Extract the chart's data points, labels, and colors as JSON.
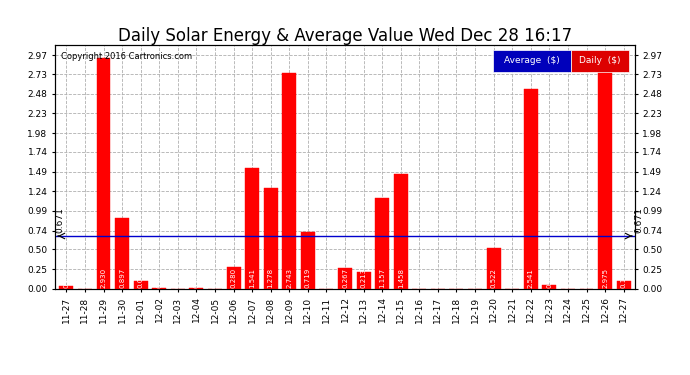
{
  "title": "Daily Solar Energy & Average Value Wed Dec 28 16:17",
  "copyright": "Copyright 2016 Cartronics.com",
  "categories": [
    "11-27",
    "11-28",
    "11-29",
    "11-30",
    "12-01",
    "12-02",
    "12-03",
    "12-04",
    "12-05",
    "12-06",
    "12-07",
    "12-08",
    "12-09",
    "12-10",
    "12-11",
    "12-12",
    "12-13",
    "12-14",
    "12-15",
    "12-16",
    "12-17",
    "12-18",
    "12-19",
    "12-20",
    "12-21",
    "12-22",
    "12-23",
    "12-24",
    "12-25",
    "12-26",
    "12-27"
  ],
  "daily_values": [
    0.037,
    0.0,
    2.93,
    0.897,
    0.098,
    0.012,
    0.0,
    0.009,
    0.0,
    0.28,
    1.541,
    1.278,
    2.743,
    0.719,
    0.0,
    0.267,
    0.213,
    1.157,
    1.458,
    0.0,
    0.0,
    0.0,
    0.0,
    0.522,
    0.0,
    2.541,
    0.048,
    0.0,
    0.0,
    2.975,
    0.102
  ],
  "average_value": 0.671,
  "ylim": [
    0.0,
    3.1
  ],
  "yticks": [
    0.0,
    0.25,
    0.5,
    0.74,
    0.99,
    1.24,
    1.49,
    1.74,
    1.98,
    2.23,
    2.48,
    2.73,
    2.97
  ],
  "bar_color": "#ff0000",
  "avg_line_color": "#0000cc",
  "background_color": "#ffffff",
  "grid_color": "#b0b0b0",
  "legend_avg_bg": "#0000bb",
  "legend_daily_bg": "#dd0000",
  "title_fontsize": 12,
  "tick_fontsize": 6.5,
  "label_fontsize": 5,
  "bar_width": 0.75
}
